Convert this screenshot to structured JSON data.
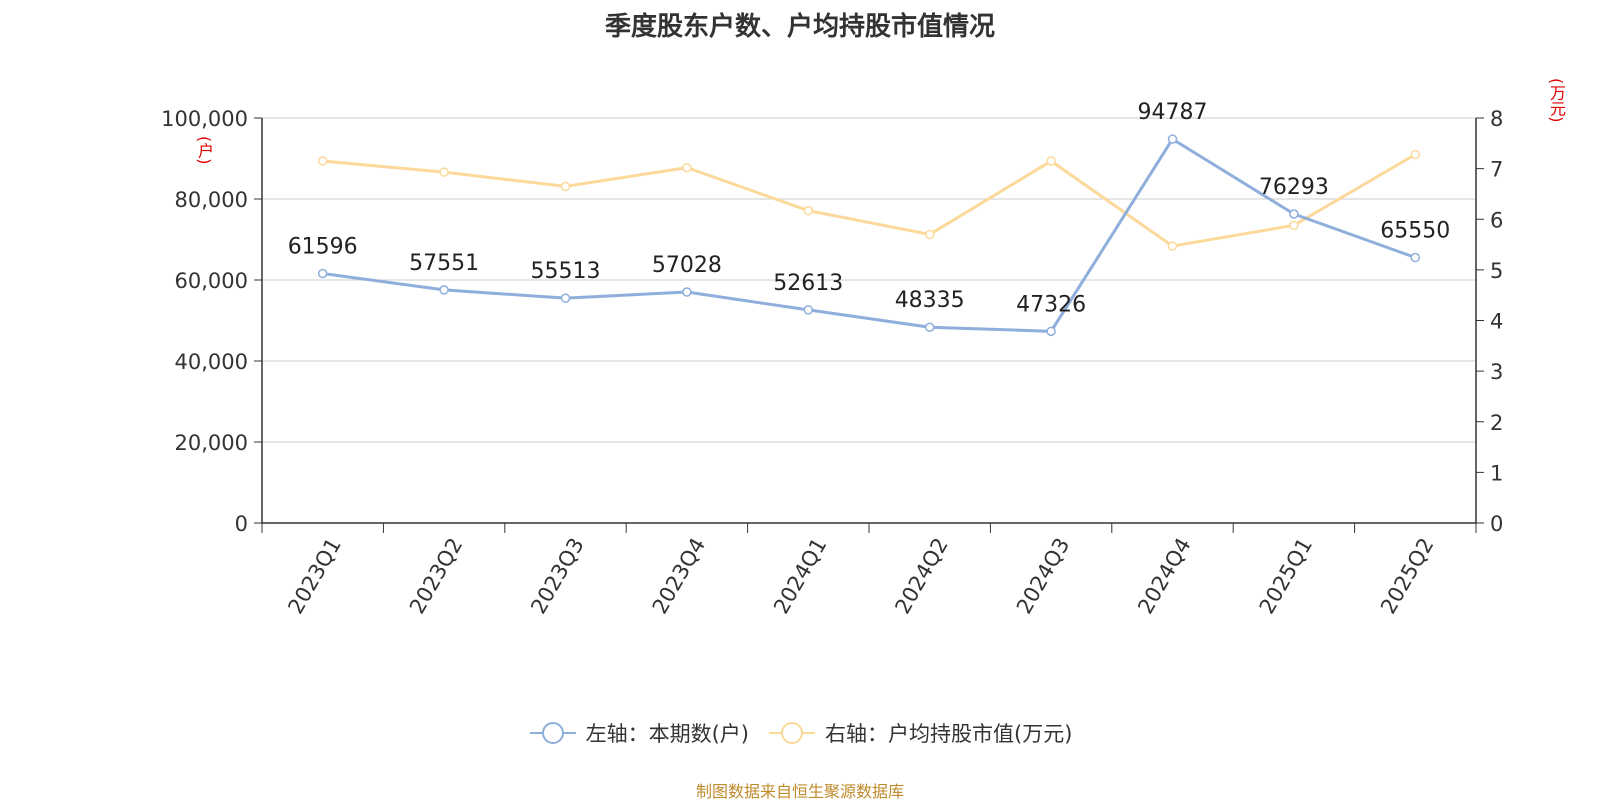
{
  "title": "季度股东户数、户均持股市值情况",
  "source": "制图数据来自恒生聚源数据库",
  "colors": {
    "series1": "#8eaedb",
    "series2": "#fcd99a",
    "unit": "#e00000",
    "source": "#c08b2c"
  },
  "chart_data": {
    "type": "line",
    "categories": [
      "2023Q1",
      "2023Q2",
      "2023Q3",
      "2023Q4",
      "2024Q1",
      "2024Q2",
      "2024Q3",
      "2024Q4",
      "2025Q1",
      "2025Q2"
    ],
    "left_axis": {
      "unit": "(户)",
      "ylim": [
        0,
        100000
      ],
      "ticks": [
        "0",
        "20,000",
        "40,000",
        "60,000",
        "80,000",
        "100,000"
      ]
    },
    "right_axis": {
      "unit": "(万元)",
      "ylim": [
        0,
        8
      ],
      "ticks": [
        "0",
        "1",
        "2",
        "3",
        "4",
        "5",
        "6",
        "7",
        "8"
      ]
    },
    "series": [
      {
        "name": "左轴：本期数(户)",
        "axis": "left",
        "values": [
          61596,
          57551,
          55513,
          57028,
          52613,
          48335,
          47326,
          94787,
          76293,
          65550
        ],
        "labels": [
          "61596",
          "57551",
          "55513",
          "57028",
          "52613",
          "48335",
          "47326",
          "94787",
          "76293",
          "65550"
        ]
      },
      {
        "name": "右轴：户均持股市值(万元)",
        "axis": "right",
        "values": [
          7.15,
          6.93,
          6.65,
          7.02,
          6.17,
          5.7,
          7.15,
          5.47,
          5.88,
          7.28
        ]
      }
    ],
    "grid": true,
    "legend": "bottom-center"
  }
}
